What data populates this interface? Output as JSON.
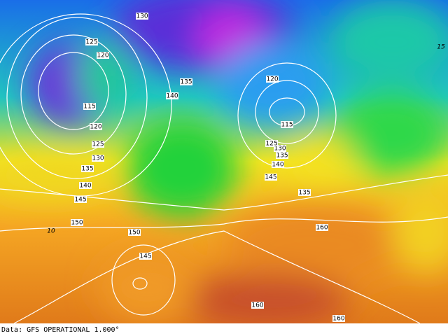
{
  "map": {
    "contour_labels": [
      "130",
      "125",
      "120",
      "115",
      "120",
      "125",
      "130",
      "135",
      "140",
      "145",
      "150",
      "150",
      "145",
      "135",
      "140",
      "120",
      "115",
      "125",
      "130",
      "135",
      "140",
      "145",
      "135",
      "160",
      "160",
      "160"
    ],
    "isotherm_labels": [
      "15",
      "10"
    ],
    "footer": {
      "source": "Data: GFS OPERATIONAL 1.000°"
    }
  }
}
